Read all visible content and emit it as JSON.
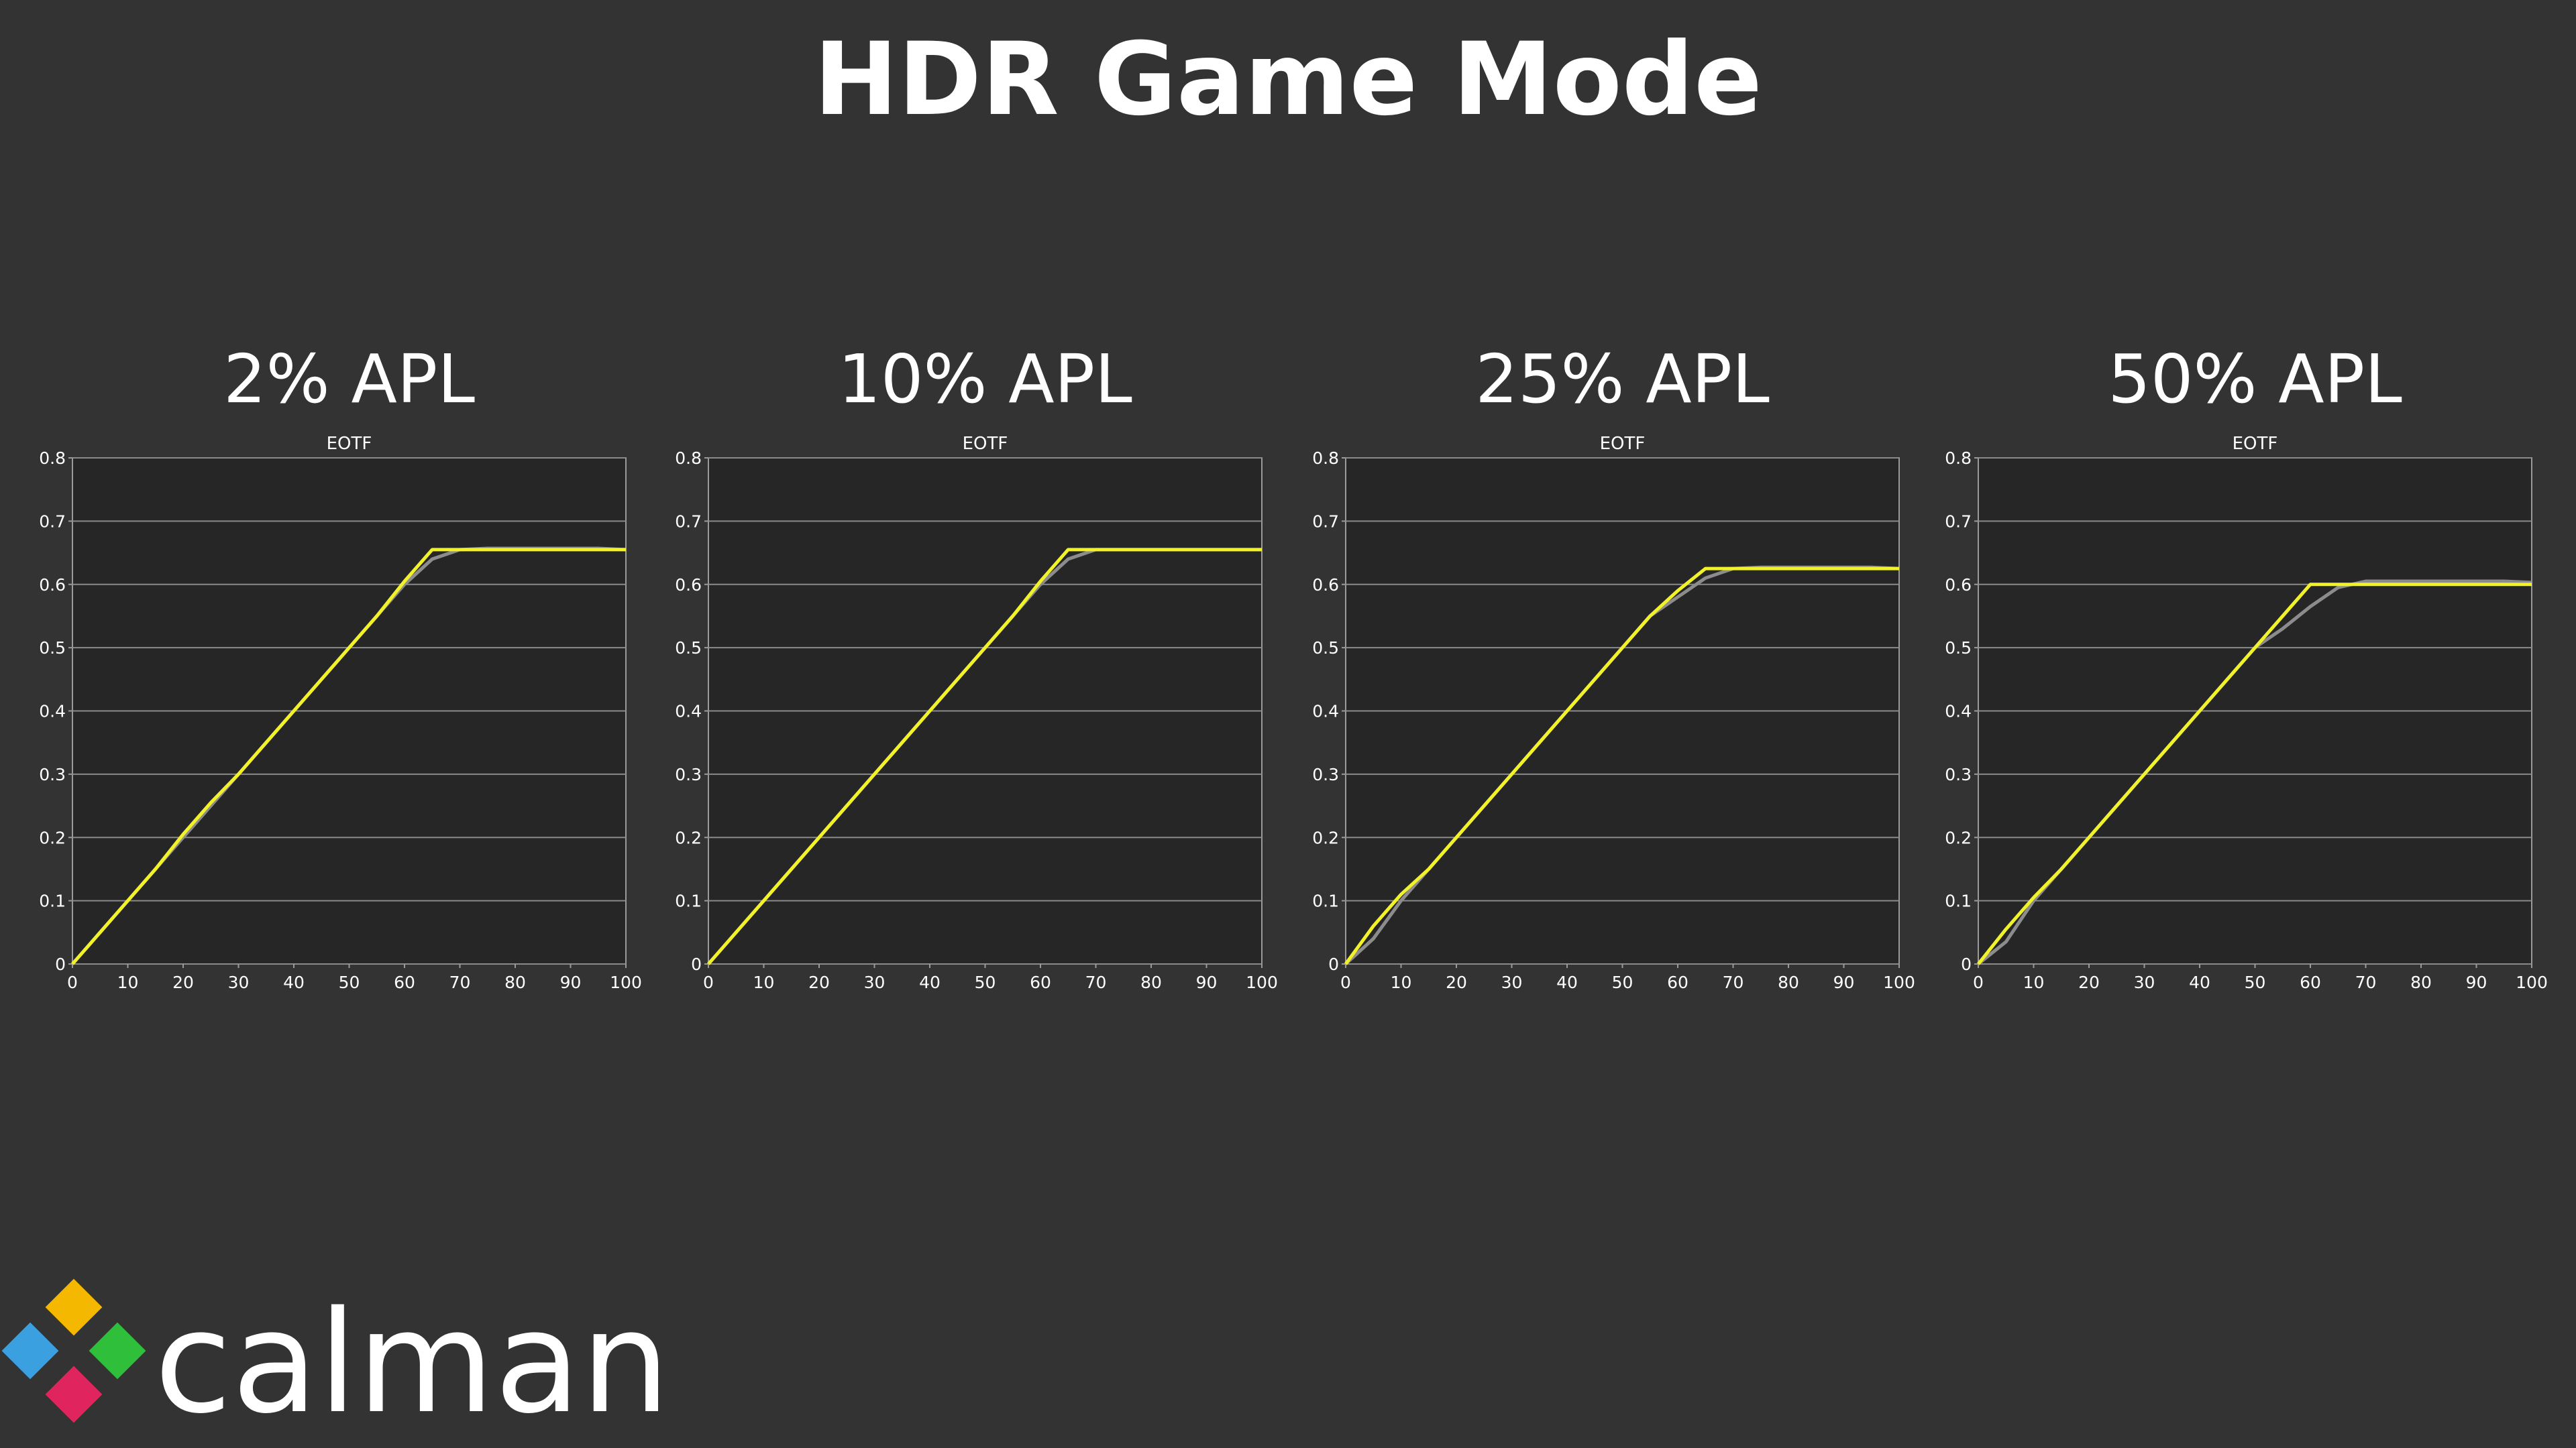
{
  "title": "HDR Game Mode",
  "logo": {
    "text": "calman"
  },
  "chart_data": [
    {
      "type": "line",
      "title": "2% APL",
      "subtitle": "EOTF",
      "x": [
        0,
        5,
        10,
        15,
        20,
        25,
        30,
        35,
        40,
        45,
        50,
        55,
        60,
        65,
        70,
        75,
        80,
        85,
        90,
        95,
        100
      ],
      "series": [
        {
          "color": "#8c8c8c",
          "values": [
            0,
            0.05,
            0.1,
            0.15,
            0.2,
            0.25,
            0.3,
            0.35,
            0.4,
            0.45,
            0.5,
            0.55,
            0.6,
            0.64,
            0.655,
            0.657,
            0.657,
            0.657,
            0.657,
            0.657,
            0.655
          ]
        },
        {
          "color": "#f2f22a",
          "values": [
            0,
            0.05,
            0.1,
            0.15,
            0.205,
            0.255,
            0.3,
            0.35,
            0.4,
            0.45,
            0.5,
            0.55,
            0.605,
            0.655,
            0.655,
            0.655,
            0.655,
            0.655,
            0.655,
            0.655,
            0.655
          ]
        }
      ],
      "xlim": [
        0,
        100
      ],
      "ylim": [
        0,
        0.8
      ],
      "xticks": [
        0,
        10,
        20,
        30,
        40,
        50,
        60,
        70,
        80,
        90,
        100
      ],
      "yticks": [
        0,
        0.1,
        0.2,
        0.3,
        0.4,
        0.5,
        0.6,
        0.7,
        0.8
      ],
      "grid": true
    },
    {
      "type": "line",
      "title": "10% APL",
      "subtitle": "EOTF",
      "x": [
        0,
        5,
        10,
        15,
        20,
        25,
        30,
        35,
        40,
        45,
        50,
        55,
        60,
        65,
        70,
        75,
        80,
        85,
        90,
        95,
        100
      ],
      "series": [
        {
          "color": "#8c8c8c",
          "values": [
            0,
            0.05,
            0.1,
            0.15,
            0.2,
            0.25,
            0.3,
            0.35,
            0.4,
            0.45,
            0.5,
            0.55,
            0.6,
            0.64,
            0.655,
            0.655,
            0.655,
            0.655,
            0.655,
            0.655,
            0.655
          ]
        },
        {
          "color": "#f2f22a",
          "values": [
            0,
            0.05,
            0.1,
            0.15,
            0.2,
            0.25,
            0.3,
            0.35,
            0.4,
            0.45,
            0.5,
            0.55,
            0.605,
            0.655,
            0.655,
            0.655,
            0.655,
            0.655,
            0.655,
            0.655,
            0.655
          ]
        }
      ],
      "xlim": [
        0,
        100
      ],
      "ylim": [
        0,
        0.8
      ],
      "xticks": [
        0,
        10,
        20,
        30,
        40,
        50,
        60,
        70,
        80,
        90,
        100
      ],
      "yticks": [
        0,
        0.1,
        0.2,
        0.3,
        0.4,
        0.5,
        0.6,
        0.7,
        0.8
      ],
      "grid": true
    },
    {
      "type": "line",
      "title": "25% APL",
      "subtitle": "EOTF",
      "x": [
        0,
        5,
        10,
        15,
        20,
        25,
        30,
        35,
        40,
        45,
        50,
        55,
        60,
        65,
        70,
        75,
        80,
        85,
        90,
        95,
        100
      ],
      "series": [
        {
          "color": "#8c8c8c",
          "values": [
            0,
            0.04,
            0.1,
            0.15,
            0.2,
            0.25,
            0.3,
            0.35,
            0.4,
            0.45,
            0.5,
            0.55,
            0.58,
            0.61,
            0.625,
            0.627,
            0.627,
            0.627,
            0.627,
            0.627,
            0.625
          ]
        },
        {
          "color": "#f2f22a",
          "values": [
            0,
            0.06,
            0.11,
            0.15,
            0.2,
            0.25,
            0.3,
            0.35,
            0.4,
            0.45,
            0.5,
            0.55,
            0.59,
            0.625,
            0.625,
            0.625,
            0.625,
            0.625,
            0.625,
            0.625,
            0.625
          ]
        }
      ],
      "xlim": [
        0,
        100
      ],
      "ylim": [
        0,
        0.8
      ],
      "xticks": [
        0,
        10,
        20,
        30,
        40,
        50,
        60,
        70,
        80,
        90,
        100
      ],
      "yticks": [
        0,
        0.1,
        0.2,
        0.3,
        0.4,
        0.5,
        0.6,
        0.7,
        0.8
      ],
      "grid": true
    },
    {
      "type": "line",
      "title": "50% APL",
      "subtitle": "EOTF",
      "x": [
        0,
        5,
        10,
        15,
        20,
        25,
        30,
        35,
        40,
        45,
        50,
        55,
        60,
        65,
        70,
        75,
        80,
        85,
        90,
        95,
        100
      ],
      "series": [
        {
          "color": "#8c8c8c",
          "values": [
            0,
            0.035,
            0.1,
            0.15,
            0.2,
            0.25,
            0.3,
            0.35,
            0.4,
            0.45,
            0.5,
            0.53,
            0.565,
            0.595,
            0.605,
            0.605,
            0.605,
            0.605,
            0.605,
            0.605,
            0.603
          ]
        },
        {
          "color": "#f2f22a",
          "values": [
            0,
            0.055,
            0.105,
            0.15,
            0.2,
            0.25,
            0.3,
            0.35,
            0.4,
            0.45,
            0.5,
            0.55,
            0.6,
            0.6,
            0.6,
            0.6,
            0.6,
            0.6,
            0.6,
            0.6,
            0.6
          ]
        }
      ],
      "xlim": [
        0,
        100
      ],
      "ylim": [
        0,
        0.8
      ],
      "xticks": [
        0,
        10,
        20,
        30,
        40,
        50,
        60,
        70,
        80,
        90,
        100
      ],
      "yticks": [
        0,
        0.1,
        0.2,
        0.3,
        0.4,
        0.5,
        0.6,
        0.7,
        0.8
      ],
      "grid": true
    }
  ]
}
